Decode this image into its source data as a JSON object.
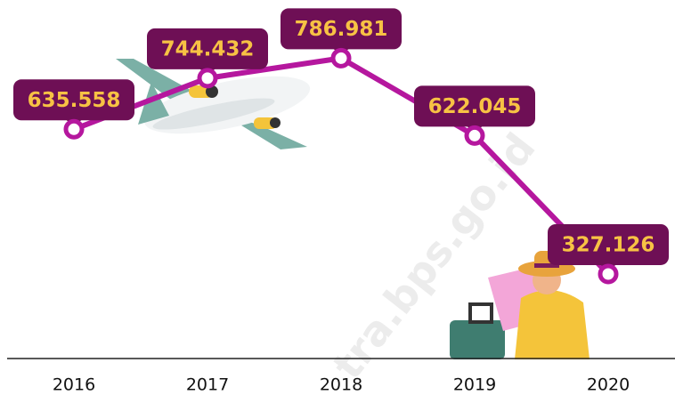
{
  "chart_data": {
    "type": "line",
    "categories": [
      "2016",
      "2017",
      "2018",
      "2019",
      "2020"
    ],
    "series": [
      {
        "color": "#b5179e",
        "values": [
          635558,
          744432,
          786981,
          622045,
          327126
        ],
        "value_labels": [
          "635.558",
          "744.432",
          "786.981",
          "622.045",
          "327.126"
        ]
      }
    ],
    "ylim": [
      147000,
      911000
    ],
    "watermark": "tra.bps.go.id"
  }
}
